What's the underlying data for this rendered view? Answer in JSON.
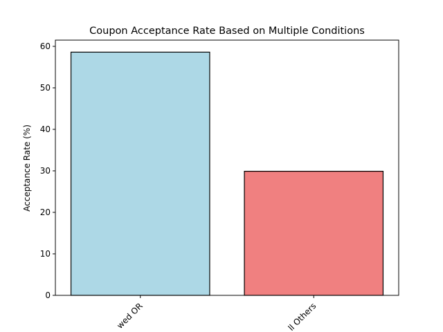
{
  "chart_data": {
    "type": "bar",
    "title": "Coupon Acceptance Rate Based on Multiple Conditions",
    "xlabel": "",
    "ylabel": "Acceptance Rate (%)",
    "categories": [
      "Go to bars more than once a month, had passengers that were not a kid, and were not widowed OR",
      "All Others"
    ],
    "category_tick_labels": [
      "wed OR",
      "ll Others"
    ],
    "values": [
      58.6,
      29.9
    ],
    "colors": [
      "#add8e6",
      "#f08080"
    ],
    "edge_color": "#000000",
    "ylim": [
      0,
      61.5
    ],
    "yticks": [
      0,
      10,
      20,
      30,
      40,
      50,
      60
    ],
    "grid": false,
    "legend": "none"
  }
}
